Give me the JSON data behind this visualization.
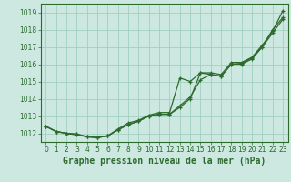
{
  "xlabel_label": "Graphe pression niveau de la mer (hPa)",
  "bg_color": "#cce8e0",
  "grid_color": "#99ccbb",
  "line_color": "#2d6a2d",
  "x_ticks": [
    0,
    1,
    2,
    3,
    4,
    5,
    6,
    7,
    8,
    9,
    10,
    11,
    12,
    13,
    14,
    15,
    16,
    17,
    18,
    19,
    20,
    21,
    22,
    23
  ],
  "xlim": [
    -0.5,
    23.5
  ],
  "ylim": [
    1011.5,
    1019.5
  ],
  "y_ticks": [
    1012,
    1013,
    1014,
    1015,
    1016,
    1017,
    1018,
    1019
  ],
  "series1": [
    1012.4,
    1012.1,
    1012.0,
    1011.9,
    1011.8,
    1011.75,
    1011.85,
    1012.2,
    1012.5,
    1012.7,
    1013.0,
    1013.1,
    1013.1,
    1013.5,
    1014.0,
    1015.5,
    1015.4,
    1015.3,
    1016.0,
    1016.0,
    1016.3,
    1017.0,
    1018.0,
    1018.7
  ],
  "series2": [
    1012.4,
    1012.1,
    1012.0,
    1011.95,
    1011.8,
    1011.75,
    1011.85,
    1012.2,
    1012.5,
    1012.7,
    1013.0,
    1013.1,
    1013.1,
    1013.6,
    1014.1,
    1015.1,
    1015.4,
    1015.3,
    1016.0,
    1016.05,
    1016.35,
    1017.0,
    1017.8,
    1018.6
  ],
  "series3": [
    1012.4,
    1012.1,
    1012.0,
    1011.95,
    1011.8,
    1011.75,
    1011.85,
    1012.25,
    1012.6,
    1012.75,
    1013.05,
    1013.2,
    1013.2,
    1015.2,
    1015.0,
    1015.5,
    1015.5,
    1015.4,
    1016.1,
    1016.1,
    1016.4,
    1017.1,
    1017.9,
    1019.1
  ],
  "title_fontsize": 7,
  "tick_fontsize": 5.5
}
